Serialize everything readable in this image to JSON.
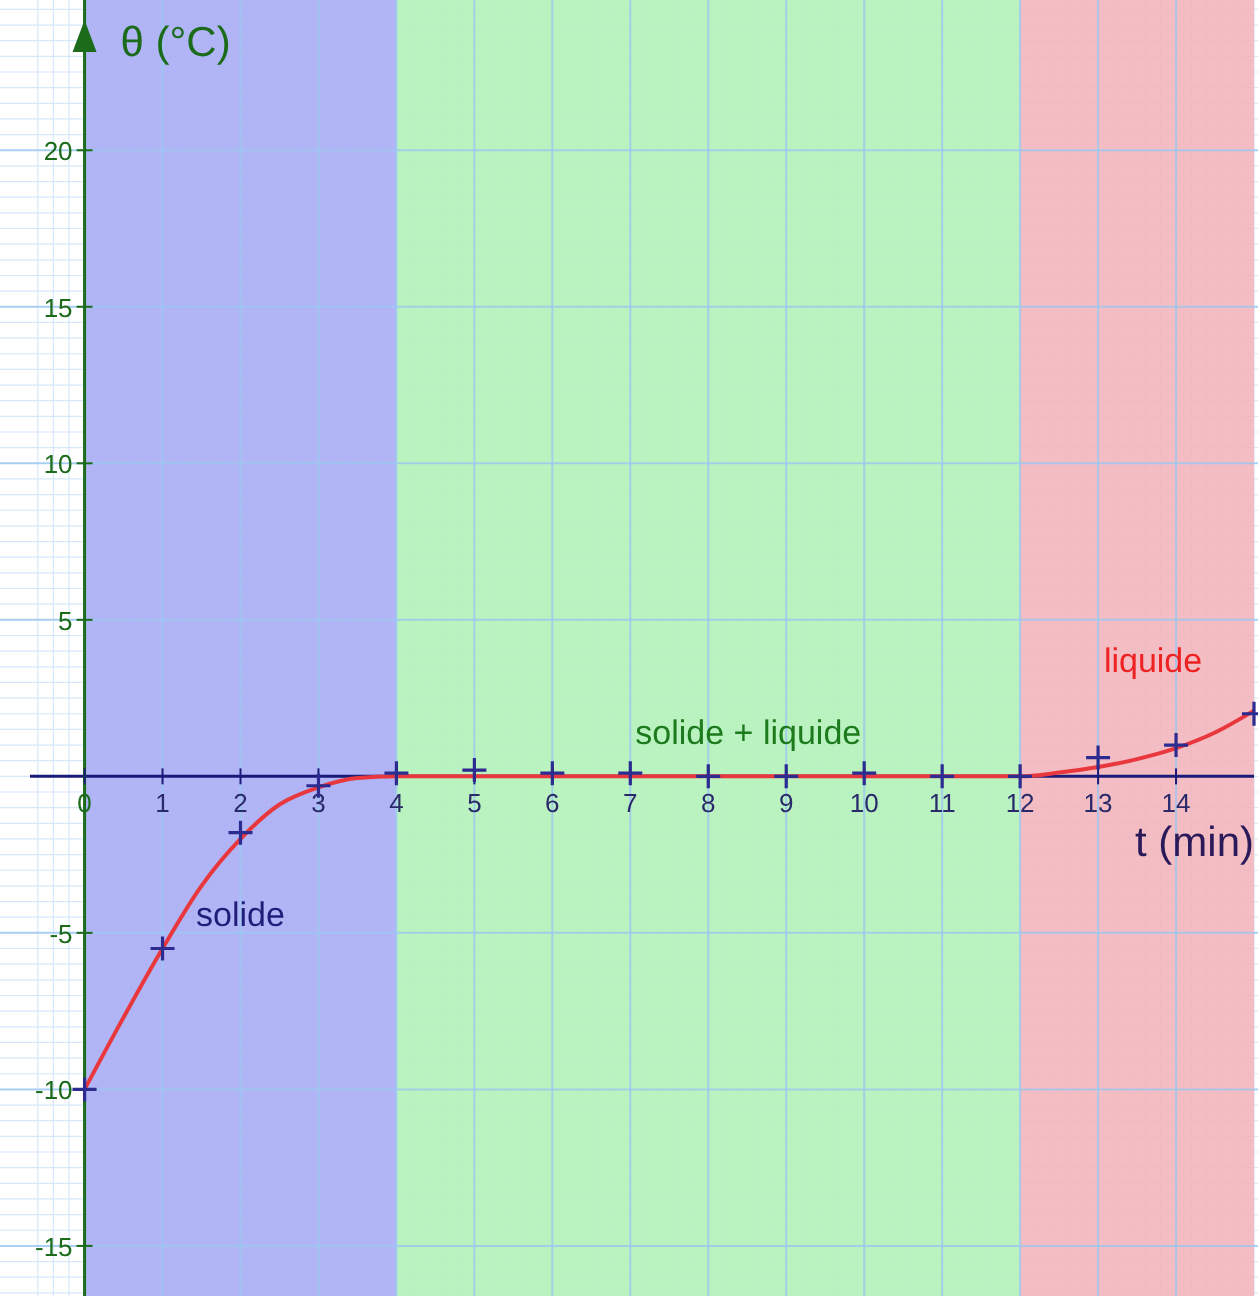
{
  "chart_data": {
    "type": "scatter",
    "xlabel": "t  (min)",
    "ylabel": "θ (°C)",
    "xlim": [
      -0.7,
      15
    ],
    "ylim": [
      -16.6,
      24.8
    ],
    "xticks": [
      0,
      1,
      2,
      3,
      4,
      5,
      6,
      7,
      8,
      9,
      10,
      11,
      12,
      13,
      14
    ],
    "yticks": [
      -15,
      -10,
      -5,
      5,
      10,
      15,
      20
    ],
    "grid": true,
    "bands": [
      {
        "axis": "x",
        "from": 0,
        "to": 4,
        "color": "#a9adf5",
        "label": "solide"
      },
      {
        "axis": "x",
        "from": 4,
        "to": 12,
        "color": "#b2f2b9",
        "label": "solide + liquide"
      },
      {
        "axis": "x",
        "from": 12,
        "to": 15,
        "color": "#f2b6bd",
        "label": "liquide"
      }
    ],
    "series": [
      {
        "type": "line",
        "color": "#e8383d",
        "x": [
          0,
          0.5,
          1,
          1.5,
          2,
          2.5,
          3,
          3.5,
          4,
          6,
          8,
          10,
          12,
          12.5,
          13,
          13.5,
          14,
          14.5,
          15
        ],
        "values": [
          -10,
          -7.7,
          -5.5,
          -3.5,
          -2,
          -0.9,
          -0.35,
          -0.05,
          0,
          0,
          0,
          0,
          0,
          0.12,
          0.3,
          0.55,
          0.9,
          1.4,
          2.1
        ]
      },
      {
        "color": "#2b2b90",
        "marker": "cross",
        "x": [
          0,
          1,
          2,
          3,
          4,
          5,
          6,
          7,
          8,
          9,
          10,
          11,
          12,
          13,
          14,
          15
        ],
        "values": [
          -10,
          -5.5,
          -1.8,
          -0.3,
          0.1,
          0.2,
          0.1,
          0.1,
          0,
          0,
          0.1,
          0,
          0,
          0.6,
          1,
          2
        ]
      }
    ]
  }
}
